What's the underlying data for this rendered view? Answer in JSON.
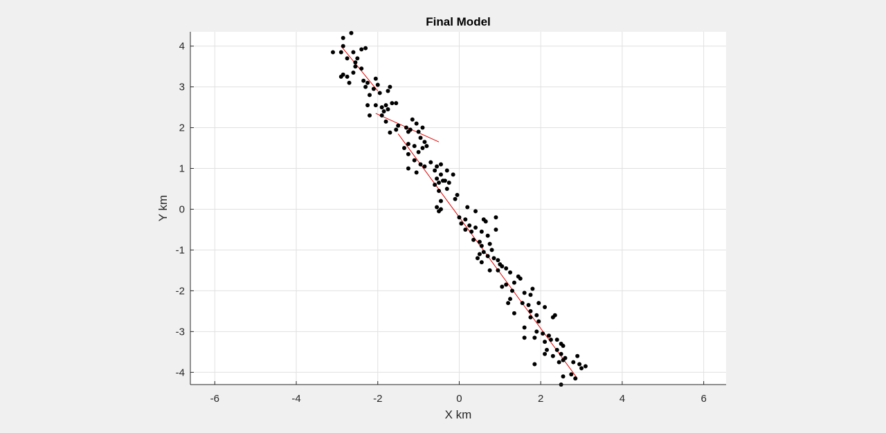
{
  "chart_data": {
    "type": "scatter",
    "title": "Final Model",
    "xlabel": "X km",
    "ylabel": "Y km",
    "xlim": [
      -6.6,
      6.55
    ],
    "ylim": [
      -4.3,
      4.35
    ],
    "xticks": [
      -6,
      -4,
      -2,
      0,
      2,
      4,
      6
    ],
    "yticks": [
      -4,
      -3,
      -2,
      -1,
      0,
      1,
      2,
      3,
      4
    ],
    "grid": true,
    "colors": {
      "points": "#000000",
      "fault_lines": "#e00000",
      "plot_bg": "#ffffff",
      "figure_bg": "#f0f0f0",
      "grid": "#e0e0e0"
    },
    "fault_lines": [
      {
        "x": [
          -2.9,
          -2.0
        ],
        "y": [
          4.0,
          2.9
        ]
      },
      {
        "x": [
          -2.05,
          -0.5
        ],
        "y": [
          2.35,
          1.65
        ]
      },
      {
        "x": [
          -1.5,
          2.9
        ],
        "y": [
          1.85,
          -4.15
        ]
      }
    ],
    "points": [
      [
        -2.85,
        4.2
      ],
      [
        -2.65,
        4.32
      ],
      [
        -3.1,
        3.85
      ],
      [
        -2.9,
        3.85
      ],
      [
        -2.85,
        4.0
      ],
      [
        -2.6,
        3.85
      ],
      [
        -2.4,
        3.92
      ],
      [
        -2.3,
        3.95
      ],
      [
        -2.75,
        3.7
      ],
      [
        -2.5,
        3.7
      ],
      [
        -2.55,
        3.6
      ],
      [
        -2.85,
        3.3
      ],
      [
        -2.75,
        3.25
      ],
      [
        -2.9,
        3.25
      ],
      [
        -2.55,
        3.5
      ],
      [
        -2.6,
        3.35
      ],
      [
        -2.4,
        3.45
      ],
      [
        -2.7,
        3.1
      ],
      [
        -2.35,
        3.15
      ],
      [
        -2.25,
        3.1
      ],
      [
        -2.3,
        3.0
      ],
      [
        -2.05,
        3.2
      ],
      [
        -2.0,
        3.05
      ],
      [
        -2.1,
        2.95
      ],
      [
        -1.95,
        2.85
      ],
      [
        -1.75,
        2.9
      ],
      [
        -1.7,
        3.0
      ],
      [
        -2.2,
        2.8
      ],
      [
        -2.25,
        2.55
      ],
      [
        -2.05,
        2.55
      ],
      [
        -1.9,
        2.5
      ],
      [
        -1.8,
        2.55
      ],
      [
        -1.65,
        2.6
      ],
      [
        -1.55,
        2.6
      ],
      [
        -2.2,
        2.3
      ],
      [
        -1.9,
        2.3
      ],
      [
        -1.85,
        2.4
      ],
      [
        -1.75,
        2.45
      ],
      [
        -1.8,
        2.15
      ],
      [
        -1.7,
        1.88
      ],
      [
        -1.55,
        1.95
      ],
      [
        -1.5,
        2.05
      ],
      [
        -1.3,
        2.0
      ],
      [
        -1.25,
        1.9
      ],
      [
        -1.15,
        2.2
      ],
      [
        -1.05,
        2.1
      ],
      [
        -0.9,
        2.0
      ],
      [
        -1.2,
        1.95
      ],
      [
        -1.0,
        1.9
      ],
      [
        -0.95,
        1.75
      ],
      [
        -0.85,
        1.65
      ],
      [
        -1.35,
        1.5
      ],
      [
        -1.25,
        1.6
      ],
      [
        -1.1,
        1.55
      ],
      [
        -0.9,
        1.5
      ],
      [
        -0.8,
        1.55
      ],
      [
        -1.0,
        1.4
      ],
      [
        -1.25,
        1.35
      ],
      [
        -1.1,
        1.2
      ],
      [
        -0.95,
        1.1
      ],
      [
        -0.85,
        1.05
      ],
      [
        -0.7,
        1.15
      ],
      [
        -0.55,
        1.05
      ],
      [
        -0.45,
        1.1
      ],
      [
        -1.25,
        1.0
      ],
      [
        -1.05,
        0.9
      ],
      [
        -0.6,
        0.95
      ],
      [
        -0.3,
        0.95
      ],
      [
        -0.45,
        0.85
      ],
      [
        -0.4,
        0.7
      ],
      [
        -0.55,
        0.75
      ],
      [
        -0.5,
        0.65
      ],
      [
        -0.6,
        0.6
      ],
      [
        -0.25,
        0.65
      ],
      [
        -0.3,
        0.5
      ],
      [
        -0.5,
        0.45
      ],
      [
        -0.05,
        0.35
      ],
      [
        -0.1,
        0.25
      ],
      [
        -0.45,
        0.2
      ],
      [
        -0.55,
        0.05
      ],
      [
        -0.5,
        -0.05
      ],
      [
        -0.45,
        0.0
      ],
      [
        0.2,
        0.05
      ],
      [
        0.4,
        -0.05
      ],
      [
        0.6,
        -0.25
      ],
      [
        0.9,
        -0.2
      ],
      [
        0.0,
        -0.2
      ],
      [
        0.15,
        -0.25
      ],
      [
        0.05,
        -0.35
      ],
      [
        0.25,
        -0.4
      ],
      [
        0.4,
        -0.45
      ],
      [
        0.55,
        -0.55
      ],
      [
        0.7,
        -0.65
      ],
      [
        0.9,
        -0.5
      ],
      [
        0.15,
        -0.5
      ],
      [
        0.3,
        -0.55
      ],
      [
        0.5,
        -0.8
      ],
      [
        0.55,
        -0.9
      ],
      [
        0.75,
        -0.85
      ],
      [
        0.8,
        -1.0
      ],
      [
        0.6,
        -1.05
      ],
      [
        0.7,
        -1.15
      ],
      [
        0.85,
        -1.2
      ],
      [
        0.95,
        -1.25
      ],
      [
        0.5,
        -1.1
      ],
      [
        0.45,
        -1.2
      ],
      [
        0.55,
        -1.3
      ],
      [
        1.0,
        -1.35
      ],
      [
        1.05,
        -1.4
      ],
      [
        1.15,
        -1.45
      ],
      [
        1.25,
        -1.55
      ],
      [
        0.75,
        -1.5
      ],
      [
        0.95,
        -1.5
      ],
      [
        1.45,
        -1.65
      ],
      [
        1.5,
        -1.7
      ],
      [
        1.35,
        -1.8
      ],
      [
        1.15,
        -1.85
      ],
      [
        1.05,
        -1.9
      ],
      [
        1.3,
        -2.0
      ],
      [
        1.6,
        -2.05
      ],
      [
        1.75,
        -2.1
      ],
      [
        1.8,
        -1.95
      ],
      [
        1.95,
        -2.3
      ],
      [
        2.1,
        -2.4
      ],
      [
        1.25,
        -2.2
      ],
      [
        1.2,
        -2.3
      ],
      [
        1.55,
        -2.3
      ],
      [
        1.7,
        -2.35
      ],
      [
        1.75,
        -2.5
      ],
      [
        1.9,
        -2.6
      ],
      [
        2.35,
        -2.6
      ],
      [
        2.3,
        -2.65
      ],
      [
        1.35,
        -2.55
      ],
      [
        1.75,
        -2.65
      ],
      [
        1.95,
        -2.75
      ],
      [
        1.6,
        -2.9
      ],
      [
        1.6,
        -3.15
      ],
      [
        1.9,
        -3.0
      ],
      [
        1.85,
        -3.15
      ],
      [
        2.05,
        -3.05
      ],
      [
        2.2,
        -3.1
      ],
      [
        2.25,
        -3.2
      ],
      [
        2.1,
        -3.25
      ],
      [
        2.4,
        -3.2
      ],
      [
        2.5,
        -3.3
      ],
      [
        2.55,
        -3.35
      ],
      [
        2.4,
        -3.45
      ],
      [
        2.5,
        -3.55
      ],
      [
        2.15,
        -3.45
      ],
      [
        2.1,
        -3.55
      ],
      [
        2.3,
        -3.6
      ],
      [
        2.45,
        -3.75
      ],
      [
        2.55,
        -3.7
      ],
      [
        2.6,
        -3.65
      ],
      [
        1.85,
        -3.8
      ],
      [
        2.8,
        -3.75
      ],
      [
        2.9,
        -3.6
      ],
      [
        2.95,
        -3.8
      ],
      [
        3.0,
        -3.9
      ],
      [
        3.1,
        -3.85
      ],
      [
        2.75,
        -4.05
      ],
      [
        2.55,
        -4.1
      ],
      [
        2.85,
        -4.15
      ],
      [
        2.5,
        -4.3
      ],
      [
        -0.35,
        0.7
      ],
      [
        -0.15,
        0.85
      ],
      [
        0.35,
        -0.75
      ],
      [
        0.65,
        -0.3
      ]
    ]
  }
}
